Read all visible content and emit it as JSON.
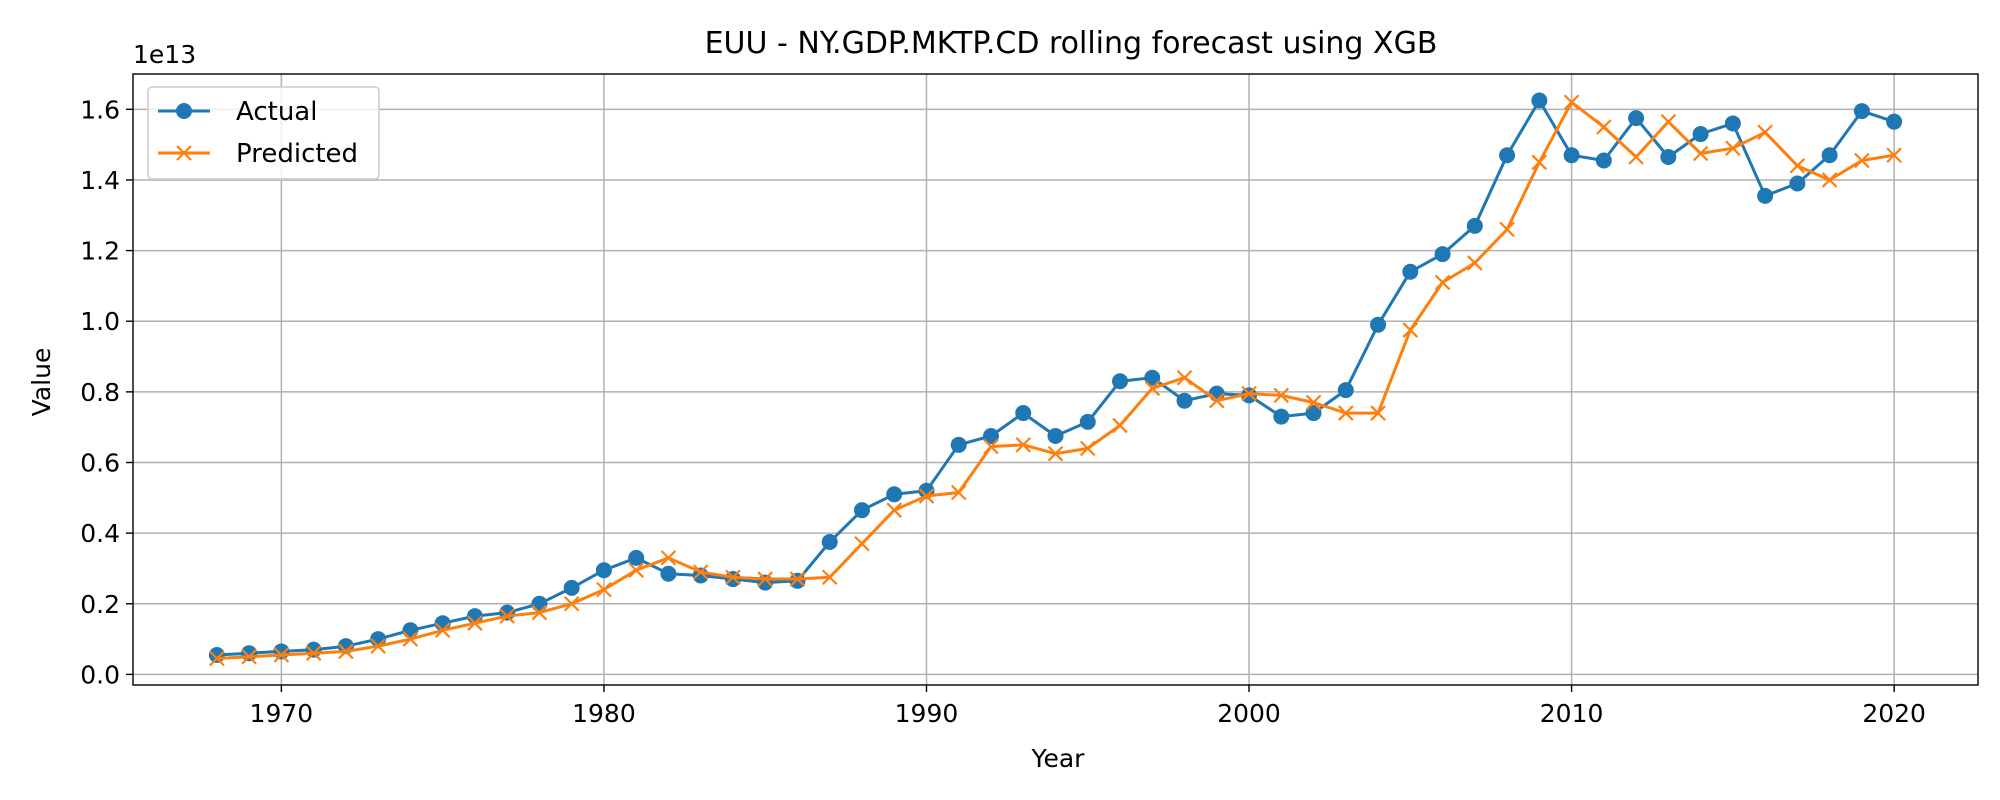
{
  "chart_data": {
    "type": "line",
    "title": "EUU - NY.GDP.MKTP.CD rolling forecast using XGB",
    "xlabel": "Year",
    "ylabel": "Value",
    "y_multiplier_label": "1e13",
    "xlim": [
      1965.4,
      2022.6
    ],
    "ylim": [
      -0.03,
      1.7
    ],
    "x_ticks": [
      1970,
      1980,
      1990,
      2000,
      2010,
      2020
    ],
    "y_ticks": [
      0.0,
      0.2,
      0.4,
      0.6,
      0.8,
      1.0,
      1.2,
      1.4,
      1.6
    ],
    "y_tick_labels": [
      "0.0",
      "0.2",
      "0.4",
      "0.6",
      "0.8",
      "1.0",
      "1.2",
      "1.4",
      "1.6"
    ],
    "grid": true,
    "legend_position": "top-left",
    "x": [
      1968,
      1969,
      1970,
      1971,
      1972,
      1973,
      1974,
      1975,
      1976,
      1977,
      1978,
      1979,
      1980,
      1981,
      1982,
      1983,
      1984,
      1985,
      1986,
      1987,
      1988,
      1989,
      1990,
      1991,
      1992,
      1993,
      1994,
      1995,
      1996,
      1997,
      1998,
      1999,
      2000,
      2001,
      2002,
      2003,
      2004,
      2005,
      2006,
      2007,
      2008,
      2009,
      2010,
      2011,
      2012,
      2013,
      2014,
      2015,
      2016,
      2017,
      2018,
      2019,
      2020
    ],
    "series": [
      {
        "name": "Actual",
        "color": "#1f77b4",
        "marker": "circle",
        "values": [
          0.055,
          0.06,
          0.065,
          0.07,
          0.08,
          0.1,
          0.125,
          0.145,
          0.165,
          0.175,
          0.2,
          0.245,
          0.295,
          0.33,
          0.285,
          0.28,
          0.27,
          0.26,
          0.265,
          0.375,
          0.465,
          0.51,
          0.52,
          0.65,
          0.675,
          0.74,
          0.675,
          0.715,
          0.83,
          0.84,
          0.775,
          0.795,
          0.79,
          0.73,
          0.74,
          0.805,
          0.99,
          1.14,
          1.19,
          1.27,
          1.47,
          1.625,
          1.47,
          1.455,
          1.575,
          1.465,
          1.53,
          1.56,
          1.355,
          1.39,
          1.47,
          1.595,
          1.565
        ]
      },
      {
        "name": "Predicted",
        "color": "#ff7f0e",
        "marker": "x",
        "values": [
          0.045,
          0.05,
          0.055,
          0.06,
          0.065,
          0.08,
          0.1,
          0.125,
          0.145,
          0.165,
          0.175,
          0.2,
          0.24,
          0.295,
          0.33,
          0.29,
          0.275,
          0.27,
          0.27,
          0.275,
          0.37,
          0.465,
          0.505,
          0.515,
          0.645,
          0.65,
          0.625,
          0.64,
          0.705,
          0.81,
          0.84,
          0.775,
          0.795,
          0.79,
          0.77,
          0.74,
          0.74,
          0.975,
          1.11,
          1.165,
          1.26,
          1.45,
          1.62,
          1.55,
          1.465,
          1.565,
          1.475,
          1.49,
          1.535,
          1.44,
          1.4,
          1.455,
          1.47
        ]
      }
    ]
  }
}
